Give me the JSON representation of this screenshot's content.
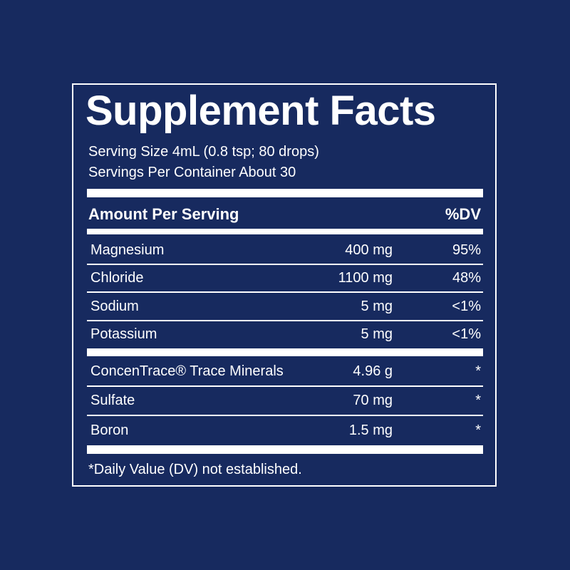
{
  "title": "Supplement Facts",
  "serving_info": [
    "Serving Size 4mL (0.8 tsp; 80 drops)",
    "Servings Per Container About 30"
  ],
  "header": {
    "amount": "Amount Per Serving",
    "dv": "%DV"
  },
  "groups": [
    [
      [
        "Magnesium",
        "400 mg",
        "95%"
      ],
      [
        "Chloride",
        "1100 mg",
        "48%"
      ],
      [
        "Sodium",
        "5 mg",
        "<1%"
      ],
      [
        "Potassium",
        "5 mg",
        "<1%"
      ]
    ],
    [
      [
        "ConcenTrace® Trace Minerals",
        "4.96 g",
        "*"
      ],
      [
        "Sulfate",
        "70 mg",
        "*"
      ],
      [
        "Boron",
        "1.5 mg",
        "*"
      ]
    ]
  ],
  "footnote": "*Daily Value (DV) not established."
}
